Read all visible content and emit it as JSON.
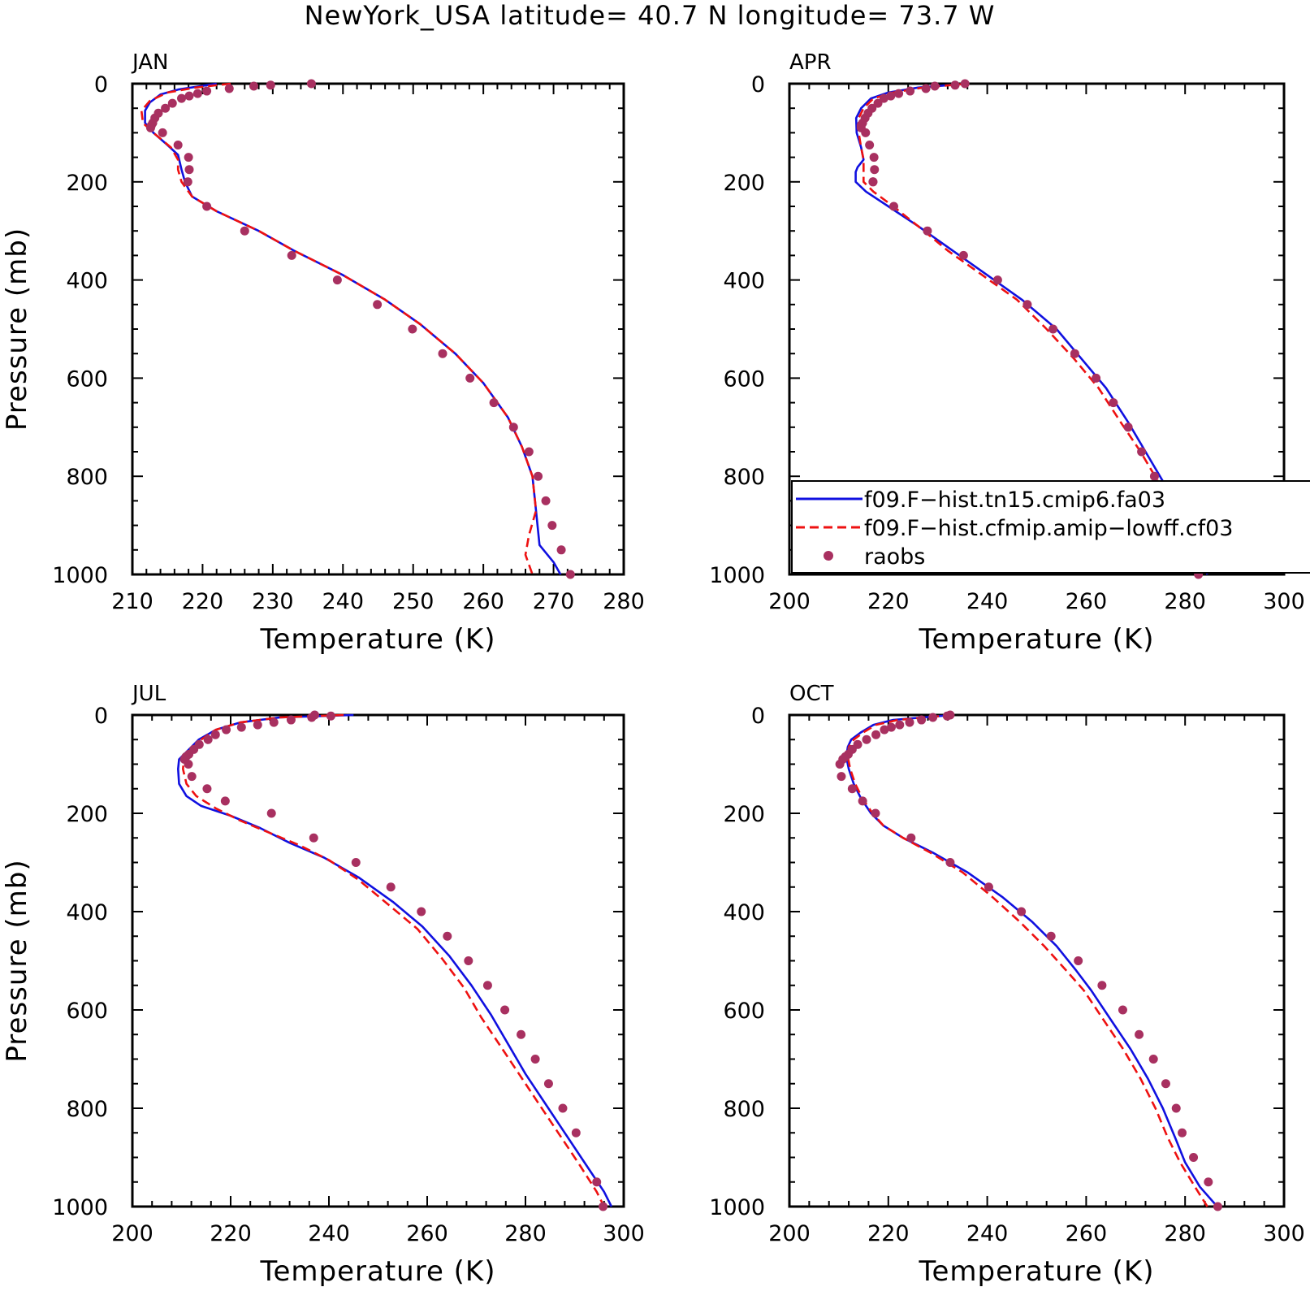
{
  "figure": {
    "title": "NewYork_USA  latitude= 40.7 N longitude= 73.7 W"
  },
  "colors": {
    "model1": "#1010e0",
    "model2": "#ee1111",
    "raobs": "#a83060",
    "axis": "#000000"
  },
  "legend": {
    "items": [
      {
        "label": "f09.F−hist.tn15.cmip6.fa03",
        "style": "solid",
        "color_key": "model1"
      },
      {
        "label": "f09.F−hist.cfmip.amip−lowff.cf03",
        "style": "dashed",
        "color_key": "model2"
      },
      {
        "label": "raobs",
        "style": "marker",
        "color_key": "raobs"
      }
    ]
  },
  "chart_data": [
    {
      "type": "line",
      "panel": "JAN",
      "title": "JAN",
      "xlabel": "Temperature (K)",
      "ylabel": "Pressure (mb)",
      "xlim": [
        210,
        280
      ],
      "xticks": [
        210,
        220,
        230,
        240,
        250,
        260,
        270,
        280
      ],
      "ylim": [
        1000,
        0
      ],
      "yticks": [
        0,
        200,
        400,
        600,
        800,
        1000
      ],
      "y_inverted": true,
      "series": [
        {
          "name": "f09.F−hist.tn15.cmip6.fa03",
          "style": "solid",
          "x": [
            222,
            216.5,
            214,
            212.5,
            211.8,
            211.8,
            213,
            215,
            216.5,
            217,
            217.5,
            218.5,
            222,
            228,
            233,
            240,
            246,
            251,
            256,
            260,
            263.5,
            265.5,
            267,
            267.5,
            268,
            270,
            271
          ],
          "y": [
            0,
            12,
            22,
            38,
            55,
            80,
            100,
            125,
            145,
            175,
            200,
            230,
            260,
            300,
            340,
            390,
            440,
            490,
            550,
            610,
            680,
            740,
            800,
            870,
            940,
            975,
            1000
          ]
        },
        {
          "name": "f09.F−hist.cfmip.amip−lowff.cf03",
          "style": "dashed",
          "x": [
            224,
            219,
            215,
            212.5,
            211.3,
            211.5,
            213,
            215.5,
            216.5,
            216.5,
            217,
            218.5,
            222,
            228,
            233,
            240,
            246,
            251,
            256,
            260,
            263.5,
            265.5,
            267,
            267.5,
            266.5,
            266,
            267
          ],
          "y": [
            0,
            8,
            18,
            35,
            55,
            80,
            100,
            130,
            155,
            175,
            200,
            230,
            260,
            300,
            340,
            390,
            440,
            490,
            550,
            610,
            680,
            740,
            800,
            870,
            920,
            960,
            1000
          ]
        },
        {
          "name": "raobs",
          "style": "marker",
          "x": [
            235.5,
            229.7,
            227.3,
            223.8,
            220.6,
            219.3,
            218.1,
            217,
            215.7,
            214.7,
            213.7,
            213.2,
            212.9,
            212.7,
            212.6,
            214.3,
            216.5,
            218,
            218.1,
            217.9,
            220.6,
            226,
            232.7,
            239.2,
            244.9,
            249.9,
            254.2,
            258.1,
            261.5,
            264.3,
            266.5,
            267.8,
            268.9,
            269.8,
            271.1,
            272.4
          ],
          "y": [
            0,
            3,
            5,
            10,
            15,
            20,
            25,
            30,
            40,
            50,
            60,
            70,
            80,
            85,
            90,
            100,
            125,
            150,
            175,
            200,
            250,
            300,
            350,
            400,
            450,
            500,
            550,
            600,
            650,
            700,
            750,
            800,
            850,
            900,
            950,
            1000
          ]
        }
      ]
    },
    {
      "type": "line",
      "panel": "APR",
      "title": "APR",
      "xlabel": "Temperature (K)",
      "ylabel": "",
      "xlim": [
        200,
        300
      ],
      "xticks": [
        200,
        220,
        240,
        260,
        280,
        300
      ],
      "ylim": [
        1000,
        0
      ],
      "yticks": [
        0,
        200,
        400,
        600,
        800,
        1000
      ],
      "y_inverted": true,
      "series": [
        {
          "name": "f09.F−hist.tn15.cmip6.fa03",
          "style": "solid",
          "x": [
            236,
            226,
            220,
            216.5,
            214.5,
            213.5,
            213.6,
            214.5,
            215,
            213.8,
            213.4,
            213.4,
            215.5,
            220,
            226,
            233,
            240,
            247,
            254,
            259,
            264,
            268.5,
            272,
            275.5,
            279,
            282,
            284.5
          ],
          "y": [
            0,
            8,
            18,
            30,
            50,
            70,
            100,
            130,
            155,
            170,
            180,
            200,
            220,
            250,
            290,
            340,
            390,
            440,
            500,
            560,
            620,
            690,
            750,
            810,
            870,
            935,
            1000
          ]
        },
        {
          "name": "f09.F−hist.cfmip.amip−lowff.cf03",
          "style": "dashed",
          "x": [
            236,
            227,
            221,
            217,
            215,
            214,
            214,
            214.5,
            215,
            215,
            215,
            215,
            217,
            221,
            226,
            232,
            239,
            246,
            252,
            257.5,
            262.5,
            267,
            271,
            274.5,
            278,
            281,
            283
          ],
          "y": [
            0,
            8,
            18,
            30,
            50,
            70,
            100,
            130,
            155,
            175,
            185,
            200,
            220,
            250,
            290,
            340,
            390,
            440,
            500,
            560,
            620,
            690,
            750,
            810,
            870,
            935,
            1000
          ]
        },
        {
          "name": "raobs",
          "style": "marker",
          "x": [
            235.5,
            233.5,
            229.4,
            227.6,
            224.4,
            222.1,
            220.5,
            219.1,
            217.9,
            216.7,
            215.9,
            215.3,
            214.8,
            214.5,
            214.5,
            215.4,
            216.2,
            217.1,
            217.2,
            216.9,
            216.9,
            221.1,
            227.9,
            235.2,
            242.1,
            248.1,
            253.3,
            257.7,
            262,
            265.5,
            268.5,
            271.2,
            273.8,
            276,
            278.4,
            280.6,
            282.7
          ],
          "y": [
            0,
            3,
            5,
            10,
            15,
            20,
            25,
            30,
            40,
            50,
            60,
            70,
            80,
            85,
            90,
            100,
            125,
            150,
            175,
            200,
            200,
            250,
            300,
            350,
            400,
            450,
            500,
            550,
            600,
            650,
            700,
            750,
            800,
            850,
            900,
            950,
            1000
          ]
        }
      ]
    },
    {
      "type": "line",
      "panel": "JUL",
      "title": "JUL",
      "xlabel": "Temperature (K)",
      "ylabel": "Pressure (mb)",
      "xlim": [
        200,
        300
      ],
      "xticks": [
        200,
        220,
        240,
        260,
        280,
        300
      ],
      "ylim": [
        1000,
        0
      ],
      "yticks": [
        0,
        200,
        400,
        600,
        800,
        1000
      ],
      "y_inverted": true,
      "series": [
        {
          "name": "f09.F−hist.tn15.cmip6.fa03",
          "style": "solid",
          "x": [
            245,
            230,
            222,
            217,
            213.5,
            211.5,
            209.5,
            209.3,
            209.5,
            211,
            214,
            220,
            226,
            232,
            239,
            246,
            253,
            259,
            264.5,
            269,
            273,
            276.5,
            280,
            284,
            288,
            292,
            296,
            297.5
          ],
          "y": [
            0,
            5,
            15,
            30,
            50,
            70,
            90,
            110,
            140,
            165,
            185,
            205,
            230,
            260,
            290,
            330,
            380,
            430,
            490,
            550,
            610,
            670,
            730,
            790,
            850,
            910,
            970,
            1000
          ]
        },
        {
          "name": "f09.F−hist.cfmip.amip−lowff.cf03",
          "style": "dashed",
          "x": [
            243,
            230,
            222,
            217,
            214,
            212,
            210.5,
            210.3,
            211,
            213,
            217,
            222,
            228,
            234,
            240,
            246,
            252,
            258,
            263,
            267.5,
            271,
            275,
            279,
            283,
            287,
            291,
            294.5,
            296
          ],
          "y": [
            0,
            5,
            15,
            30,
            50,
            70,
            90,
            110,
            140,
            165,
            190,
            215,
            240,
            265,
            295,
            335,
            385,
            435,
            495,
            555,
            615,
            675,
            735,
            795,
            855,
            915,
            970,
            1000
          ]
        },
        {
          "name": "raobs",
          "style": "marker",
          "x": [
            237.1,
            240.4,
            236.5,
            232.3,
            228.8,
            225.5,
            222.2,
            219.1,
            216.9,
            215.4,
            213.6,
            212.5,
            211.5,
            210.9,
            210.6,
            211.4,
            212.1,
            215.2,
            218.9,
            228.3,
            236.9,
            245.5,
            252.6,
            258.8,
            264.1,
            268.4,
            272.3,
            275.8,
            279.1,
            282,
            284.7,
            287.6,
            290.3,
            294.5,
            295.8
          ],
          "y": [
            0,
            2,
            5,
            10,
            15,
            20,
            25,
            30,
            40,
            50,
            60,
            70,
            80,
            85,
            90,
            100,
            125,
            150,
            175,
            200,
            250,
            300,
            350,
            400,
            450,
            500,
            550,
            600,
            650,
            700,
            750,
            800,
            850,
            950,
            1000
          ]
        }
      ]
    },
    {
      "type": "line",
      "panel": "OCT",
      "title": "OCT",
      "xlabel": "Temperature (K)",
      "ylabel": "",
      "xlim": [
        200,
        300
      ],
      "xticks": [
        200,
        220,
        240,
        260,
        280,
        300
      ],
      "ylim": [
        1000,
        0
      ],
      "yticks": [
        0,
        200,
        400,
        600,
        800,
        1000
      ],
      "y_inverted": true,
      "series": [
        {
          "name": "f09.F−hist.tn15.cmip6.fa03",
          "style": "solid",
          "x": [
            233,
            221,
            217,
            214.5,
            212.5,
            211.8,
            211.5,
            212,
            213,
            214.5,
            216.5,
            219,
            223,
            229,
            236,
            243,
            249,
            254,
            258,
            261,
            265,
            269,
            272.5,
            275.5,
            278,
            280,
            283,
            286.5
          ],
          "y": [
            0,
            10,
            20,
            35,
            50,
            65,
            85,
            110,
            140,
            170,
            200,
            225,
            250,
            280,
            320,
            370,
            420,
            470,
            520,
            560,
            620,
            680,
            740,
            800,
            860,
            910,
            960,
            1000
          ]
        },
        {
          "name": "f09.F−hist.cfmip.amip−lowff.cf03",
          "style": "dashed",
          "x": [
            233,
            222,
            217.5,
            215,
            213,
            212,
            211.8,
            212.3,
            213.3,
            214.8,
            216.8,
            219,
            223,
            228.5,
            235,
            241,
            246.5,
            251.5,
            256,
            259.5,
            263.5,
            267.5,
            271,
            274,
            276.5,
            279,
            282,
            284.5
          ],
          "y": [
            0,
            10,
            20,
            35,
            50,
            65,
            85,
            110,
            140,
            170,
            200,
            225,
            250,
            280,
            320,
            370,
            420,
            470,
            520,
            560,
            620,
            680,
            740,
            800,
            860,
            910,
            960,
            1000
          ]
        },
        {
          "name": "raobs",
          "style": "marker",
          "x": [
            232.5,
            231.9,
            229,
            226.7,
            224.3,
            222.3,
            220.6,
            219.2,
            217.5,
            215.6,
            213.8,
            212.7,
            211.9,
            211.3,
            210.8,
            210.2,
            210.5,
            212.7,
            214.8,
            217.4,
            224.6,
            232.5,
            240.3,
            246.9,
            252.9,
            258.4,
            263.2,
            267.4,
            270.7,
            273.6,
            276.1,
            278.2,
            279.4,
            281.7,
            284.7,
            286.6
          ],
          "y": [
            0,
            2,
            5,
            10,
            15,
            20,
            25,
            30,
            40,
            50,
            60,
            70,
            80,
            85,
            90,
            100,
            125,
            150,
            175,
            200,
            250,
            300,
            350,
            400,
            450,
            500,
            550,
            600,
            650,
            700,
            750,
            800,
            850,
            900,
            950,
            1000
          ]
        }
      ]
    }
  ]
}
